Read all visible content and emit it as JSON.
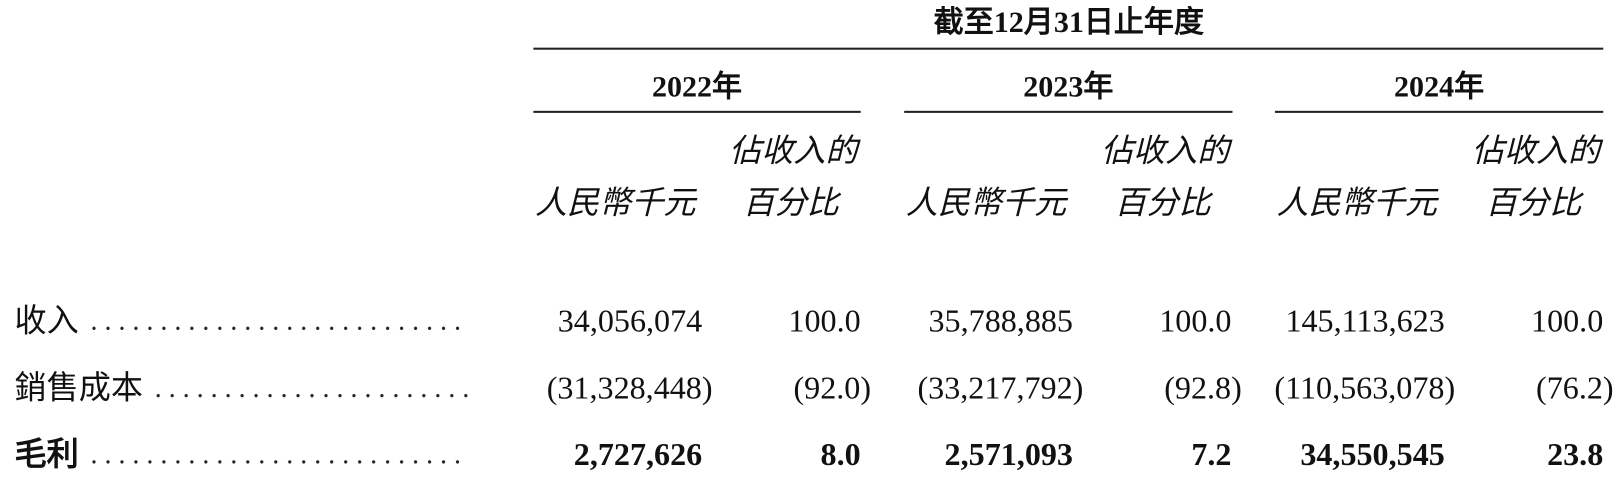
{
  "header": {
    "period": "截至12月31日止年度",
    "years": [
      "2022年",
      "2023年",
      "2024年"
    ],
    "columns": [
      {
        "amount": "人民幣千元",
        "percent": [
          "佔收入的",
          "百分比"
        ]
      },
      {
        "amount": "人民幣千元",
        "percent": [
          "佔收入的",
          "百分比"
        ]
      },
      {
        "amount": "人民幣千元",
        "percent": [
          "佔收入的",
          "百分比"
        ]
      }
    ]
  },
  "table": {
    "rows": [
      {
        "label": "收入",
        "values": [
          "34,056,074",
          "100.0",
          "35,788,885",
          "100.0",
          "145,113,623",
          "100.0"
        ]
      },
      {
        "label": "銷售成本",
        "values": [
          "(31,328,448)",
          "(92.0)",
          "(33,217,792)",
          "(92.8)",
          "(110,563,078)",
          "(76.2)"
        ]
      },
      {
        "label": "毛利",
        "values": [
          "2,727,626",
          "8.0",
          "2,571,093",
          "7.2",
          "34,550,545",
          "23.8"
        ]
      }
    ]
  }
}
